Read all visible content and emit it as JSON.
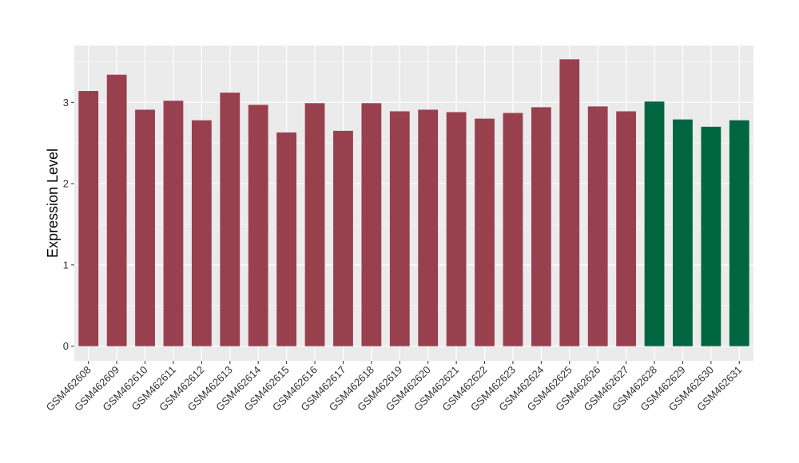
{
  "chart_data": {
    "type": "bar",
    "title": "",
    "xlabel": "",
    "ylabel": "Expression Level",
    "ylim": [
      -0.18,
      3.7
    ],
    "yticks": [
      0,
      1,
      2,
      3
    ],
    "grid": true,
    "legend": "none",
    "colors": {
      "group1": "#99404f",
      "group2": "#006641",
      "panel": "#ebebeb",
      "grid": "#ffffff"
    },
    "categories": [
      "GSM462608",
      "GSM462609",
      "GSM462610",
      "GSM462611",
      "GSM462612",
      "GSM462613",
      "GSM462614",
      "GSM462615",
      "GSM462616",
      "GSM462617",
      "GSM462618",
      "GSM462619",
      "GSM462620",
      "GSM462621",
      "GSM462622",
      "GSM462623",
      "GSM462624",
      "GSM462625",
      "GSM462626",
      "GSM462627",
      "GSM462628",
      "GSM462629",
      "GSM462630",
      "GSM462631"
    ],
    "values": [
      3.14,
      3.34,
      2.91,
      3.02,
      2.78,
      3.12,
      2.97,
      2.63,
      2.99,
      2.65,
      2.99,
      2.89,
      2.91,
      2.88,
      2.8,
      2.87,
      2.94,
      3.53,
      2.95,
      2.89,
      3.01,
      2.79,
      2.7,
      2.78
    ],
    "bar_groups": [
      "group1",
      "group1",
      "group1",
      "group1",
      "group1",
      "group1",
      "group1",
      "group1",
      "group1",
      "group1",
      "group1",
      "group1",
      "group1",
      "group1",
      "group1",
      "group1",
      "group1",
      "group1",
      "group1",
      "group1",
      "group2",
      "group2",
      "group2",
      "group2"
    ]
  }
}
